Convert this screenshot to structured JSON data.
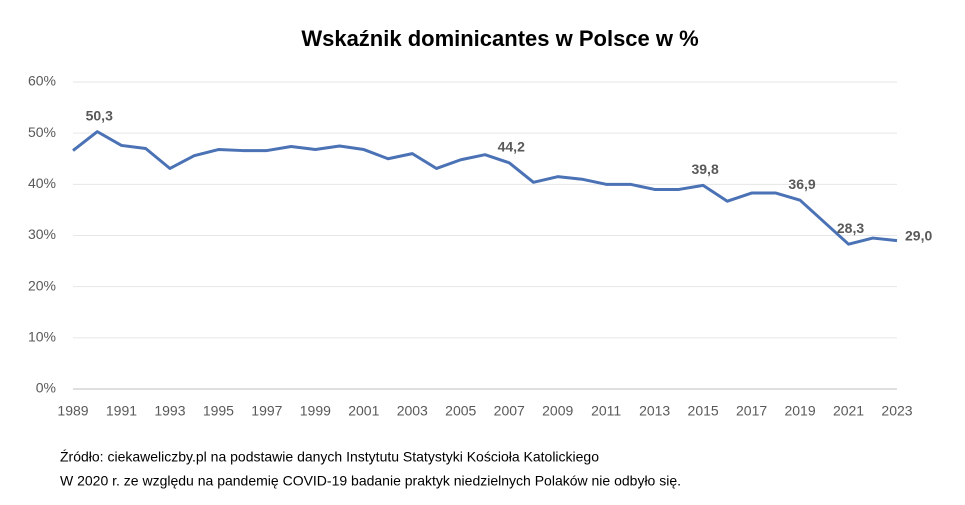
{
  "chart_data": {
    "type": "line",
    "title": "Wskaźnik dominicantes w Polsce w %",
    "x": [
      1989,
      1990,
      1991,
      1992,
      1993,
      1994,
      1995,
      1996,
      1997,
      1998,
      1999,
      2000,
      2001,
      2002,
      2003,
      2004,
      2005,
      2006,
      2007,
      2008,
      2009,
      2010,
      2011,
      2012,
      2013,
      2014,
      2015,
      2016,
      2017,
      2018,
      2019,
      2021,
      2022,
      2023
    ],
    "values": [
      46.6,
      50.3,
      47.6,
      47.0,
      43.1,
      45.6,
      46.8,
      46.6,
      46.6,
      47.4,
      46.8,
      47.5,
      46.8,
      45.0,
      46.0,
      43.1,
      44.8,
      45.8,
      44.2,
      40.4,
      41.5,
      41.0,
      40.0,
      40.0,
      39.0,
      39.0,
      39.8,
      36.7,
      38.3,
      38.3,
      36.9,
      28.3,
      29.5,
      29.0
    ],
    "value_labels": [
      null,
      "50,3",
      null,
      null,
      null,
      null,
      null,
      null,
      null,
      null,
      null,
      null,
      null,
      null,
      null,
      null,
      null,
      null,
      "44,2",
      null,
      null,
      null,
      null,
      null,
      null,
      null,
      "39,8",
      null,
      null,
      null,
      "36,9",
      "28,3",
      null,
      "29,0"
    ],
    "color": "#4a72b5",
    "label_color": "#404040",
    "highlight_last_color": "#c00000",
    "xlim": [
      1989,
      2023
    ],
    "xticks": [
      1989,
      1991,
      1993,
      1995,
      1997,
      1999,
      2001,
      2003,
      2005,
      2007,
      2009,
      2011,
      2013,
      2015,
      2017,
      2019,
      2021,
      2023
    ],
    "ylim": [
      0,
      60
    ],
    "yticks": [
      {
        "value": 0,
        "label": "0%"
      },
      {
        "value": 10,
        "label": "10%"
      },
      {
        "value": 20,
        "label": "20%"
      },
      {
        "value": 30,
        "label": "30%"
      },
      {
        "value": 40,
        "label": "40%"
      },
      {
        "value": 50,
        "label": "50%"
      },
      {
        "value": 60,
        "label": "60%"
      }
    ],
    "grid": true,
    "notes": [
      "Źródło: ciekaweliczby.pl na podstawie danych Instytutu Statystyki Kościoła Katolickiego",
      "W 2020 r. ze względu na pandemię COVID-19 badanie praktyk niedzielnych Polaków nie odbyło się."
    ]
  }
}
